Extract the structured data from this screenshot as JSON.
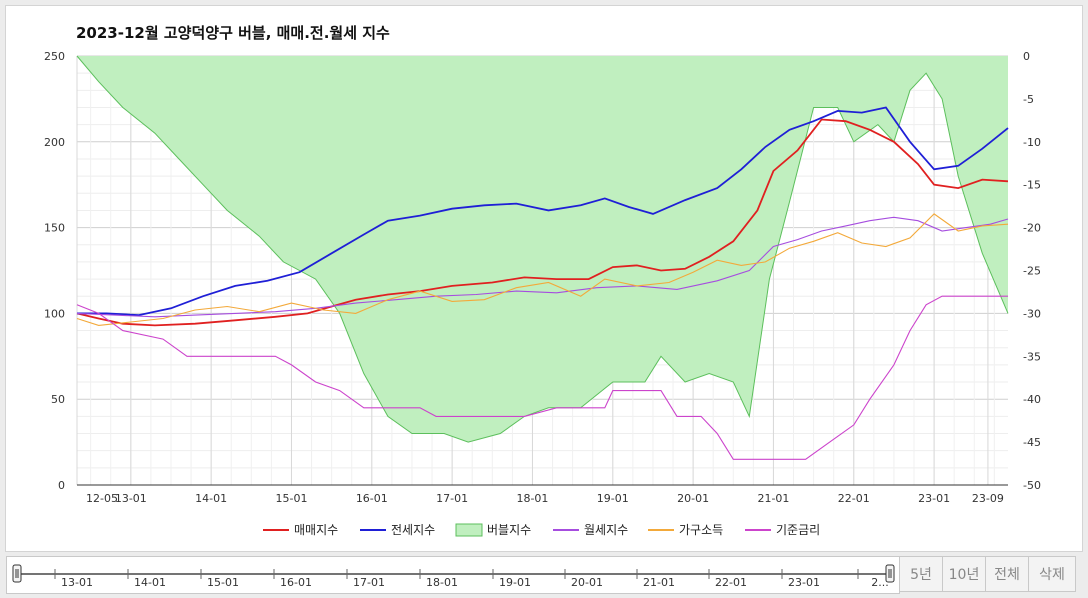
{
  "title": "2023-12월 고양덕양구 버블, 매매.전.월세 지수",
  "buttons": [
    "5년",
    "10년",
    "전체",
    "삭제"
  ],
  "navigator_ticks": [
    "13-01",
    "14-01",
    "15-01",
    "16-01",
    "17-01",
    "18-01",
    "19-01",
    "20-01",
    "21-01",
    "22-01",
    "23-01",
    "2..."
  ],
  "chart_data": {
    "type": "line",
    "title": "2023-12월 고양덕양구 버블, 매매.전.월세 지수",
    "x_ticks": [
      "12-05",
      "13-01",
      "14-01",
      "15-01",
      "16-01",
      "17-01",
      "18-01",
      "19-01",
      "20-01",
      "21-01",
      "22-01",
      "23-01",
      "23-09"
    ],
    "y_left": {
      "range": [
        0,
        250
      ],
      "ticks": [
        0,
        50,
        100,
        150,
        200,
        250
      ]
    },
    "y_right": {
      "range": [
        -50,
        0
      ],
      "ticks": [
        0,
        -5,
        -10,
        -15,
        -20,
        -25,
        -30,
        -35,
        -40,
        -45,
        -50
      ]
    },
    "grid": true,
    "legend_position": "bottom",
    "series": [
      {
        "name": "매매지수",
        "color": "#e02020",
        "axis": "left",
        "points": [
          [
            2012.33,
            100
          ],
          [
            2012.6,
            97
          ],
          [
            2012.9,
            94
          ],
          [
            2013.3,
            93
          ],
          [
            2013.8,
            94
          ],
          [
            2014.3,
            96
          ],
          [
            2014.8,
            98
          ],
          [
            2015.2,
            100
          ],
          [
            2015.5,
            104
          ],
          [
            2015.8,
            108
          ],
          [
            2016.2,
            111
          ],
          [
            2016.6,
            113
          ],
          [
            2017.0,
            116
          ],
          [
            2017.5,
            118
          ],
          [
            2017.9,
            121
          ],
          [
            2018.3,
            120
          ],
          [
            2018.7,
            120
          ],
          [
            2019.0,
            127
          ],
          [
            2019.3,
            128
          ],
          [
            2019.6,
            125
          ],
          [
            2019.9,
            126
          ],
          [
            2020.2,
            133
          ],
          [
            2020.5,
            142
          ],
          [
            2020.8,
            160
          ],
          [
            2021.0,
            183
          ],
          [
            2021.3,
            195
          ],
          [
            2021.6,
            213
          ],
          [
            2021.9,
            212
          ],
          [
            2022.2,
            207
          ],
          [
            2022.5,
            200
          ],
          [
            2022.8,
            187
          ],
          [
            2023.0,
            175
          ],
          [
            2023.3,
            173
          ],
          [
            2023.6,
            178
          ],
          [
            2023.92,
            177
          ]
        ]
      },
      {
        "name": "전세지수",
        "color": "#1f1fd6",
        "axis": "left",
        "points": [
          [
            2012.33,
            100
          ],
          [
            2012.7,
            100
          ],
          [
            2013.1,
            99
          ],
          [
            2013.5,
            103
          ],
          [
            2013.9,
            110
          ],
          [
            2014.3,
            116
          ],
          [
            2014.7,
            119
          ],
          [
            2015.1,
            124
          ],
          [
            2015.5,
            135
          ],
          [
            2015.9,
            146
          ],
          [
            2016.2,
            154
          ],
          [
            2016.6,
            157
          ],
          [
            2017.0,
            161
          ],
          [
            2017.4,
            163
          ],
          [
            2017.8,
            164
          ],
          [
            2018.2,
            160
          ],
          [
            2018.6,
            163
          ],
          [
            2018.9,
            167
          ],
          [
            2019.2,
            162
          ],
          [
            2019.5,
            158
          ],
          [
            2019.9,
            166
          ],
          [
            2020.3,
            173
          ],
          [
            2020.6,
            184
          ],
          [
            2020.9,
            197
          ],
          [
            2021.2,
            207
          ],
          [
            2021.5,
            212
          ],
          [
            2021.8,
            218
          ],
          [
            2022.1,
            217
          ],
          [
            2022.4,
            220
          ],
          [
            2022.7,
            200
          ],
          [
            2023.0,
            184
          ],
          [
            2023.3,
            186
          ],
          [
            2023.6,
            196
          ],
          [
            2023.92,
            208
          ]
        ]
      },
      {
        "name": "버블지수",
        "color": "#5cbf5c",
        "fill": "#c0efbf",
        "axis": "right",
        "points": [
          [
            2012.33,
            0
          ],
          [
            2012.6,
            -3
          ],
          [
            2012.9,
            -6
          ],
          [
            2013.3,
            -9
          ],
          [
            2013.6,
            -12
          ],
          [
            2013.9,
            -15
          ],
          [
            2014.2,
            -18
          ],
          [
            2014.6,
            -21
          ],
          [
            2014.9,
            -24
          ],
          [
            2015.3,
            -26
          ],
          [
            2015.6,
            -30
          ],
          [
            2015.9,
            -37
          ],
          [
            2016.2,
            -42
          ],
          [
            2016.5,
            -44
          ],
          [
            2016.9,
            -44
          ],
          [
            2017.2,
            -45
          ],
          [
            2017.6,
            -44
          ],
          [
            2017.9,
            -42
          ],
          [
            2018.2,
            -41
          ],
          [
            2018.6,
            -41
          ],
          [
            2019.0,
            -38
          ],
          [
            2019.4,
            -38
          ],
          [
            2019.6,
            -35
          ],
          [
            2019.9,
            -38
          ],
          [
            2020.2,
            -37
          ],
          [
            2020.5,
            -38
          ],
          [
            2020.7,
            -42
          ],
          [
            2020.95,
            -26
          ],
          [
            2021.2,
            -17
          ],
          [
            2021.5,
            -6
          ],
          [
            2021.8,
            -6
          ],
          [
            2022.0,
            -10
          ],
          [
            2022.3,
            -8
          ],
          [
            2022.5,
            -10
          ],
          [
            2022.7,
            -4
          ],
          [
            2022.9,
            -2
          ],
          [
            2023.1,
            -5
          ],
          [
            2023.3,
            -14
          ],
          [
            2023.6,
            -23
          ],
          [
            2023.92,
            -30
          ]
        ]
      },
      {
        "name": "월세지수",
        "color": "#a64ddf",
        "axis": "left",
        "points": [
          [
            2012.33,
            100
          ],
          [
            2012.8,
            99
          ],
          [
            2013.3,
            98
          ],
          [
            2013.8,
            99
          ],
          [
            2014.3,
            100
          ],
          [
            2014.8,
            101
          ],
          [
            2015.3,
            103
          ],
          [
            2015.8,
            106
          ],
          [
            2016.3,
            108
          ],
          [
            2016.8,
            110
          ],
          [
            2017.3,
            111
          ],
          [
            2017.8,
            113
          ],
          [
            2018.3,
            112
          ],
          [
            2018.8,
            115
          ],
          [
            2019.3,
            116
          ],
          [
            2019.8,
            114
          ],
          [
            2020.3,
            119
          ],
          [
            2020.7,
            125
          ],
          [
            2021.0,
            139
          ],
          [
            2021.3,
            143
          ],
          [
            2021.6,
            148
          ],
          [
            2021.9,
            151
          ],
          [
            2022.2,
            154
          ],
          [
            2022.5,
            156
          ],
          [
            2022.8,
            154
          ],
          [
            2023.1,
            148
          ],
          [
            2023.4,
            150
          ],
          [
            2023.7,
            152
          ],
          [
            2023.92,
            155
          ]
        ]
      },
      {
        "name": "가구소득",
        "color": "#f3a93a",
        "axis": "left",
        "points": [
          [
            2012.33,
            97
          ],
          [
            2012.6,
            93
          ],
          [
            2013.0,
            95
          ],
          [
            2013.4,
            97
          ],
          [
            2013.8,
            102
          ],
          [
            2014.2,
            104
          ],
          [
            2014.6,
            101
          ],
          [
            2015.0,
            106
          ],
          [
            2015.4,
            102
          ],
          [
            2015.8,
            100
          ],
          [
            2016.2,
            108
          ],
          [
            2016.6,
            113
          ],
          [
            2017.0,
            107
          ],
          [
            2017.4,
            108
          ],
          [
            2017.8,
            115
          ],
          [
            2018.2,
            118
          ],
          [
            2018.6,
            110
          ],
          [
            2018.9,
            120
          ],
          [
            2019.3,
            116
          ],
          [
            2019.7,
            118
          ],
          [
            2020.0,
            124
          ],
          [
            2020.3,
            131
          ],
          [
            2020.6,
            128
          ],
          [
            2020.9,
            130
          ],
          [
            2021.2,
            138
          ],
          [
            2021.5,
            142
          ],
          [
            2021.8,
            147
          ],
          [
            2022.1,
            141
          ],
          [
            2022.4,
            139
          ],
          [
            2022.7,
            144
          ],
          [
            2023.0,
            158
          ],
          [
            2023.3,
            148
          ],
          [
            2023.6,
            151
          ],
          [
            2023.92,
            152
          ]
        ]
      },
      {
        "name": "기준금리",
        "color": "#cc44cc",
        "axis": "right",
        "points": [
          [
            2012.33,
            -29
          ],
          [
            2012.6,
            -30
          ],
          [
            2012.9,
            -32
          ],
          [
            2013.4,
            -33
          ],
          [
            2013.7,
            -35
          ],
          [
            2014.8,
            -35
          ],
          [
            2015.0,
            -36
          ],
          [
            2015.3,
            -38
          ],
          [
            2015.6,
            -39
          ],
          [
            2015.9,
            -41
          ],
          [
            2016.6,
            -41
          ],
          [
            2016.8,
            -42
          ],
          [
            2017.9,
            -42
          ],
          [
            2018.3,
            -41
          ],
          [
            2018.9,
            -41
          ],
          [
            2019.0,
            -39
          ],
          [
            2019.6,
            -39
          ],
          [
            2019.8,
            -42
          ],
          [
            2020.1,
            -42
          ],
          [
            2020.3,
            -44
          ],
          [
            2020.5,
            -47
          ],
          [
            2021.4,
            -47
          ],
          [
            2021.7,
            -45
          ],
          [
            2022.0,
            -43
          ],
          [
            2022.2,
            -40
          ],
          [
            2022.5,
            -36
          ],
          [
            2022.7,
            -32
          ],
          [
            2022.9,
            -29
          ],
          [
            2023.1,
            -28
          ],
          [
            2023.92,
            -28
          ]
        ]
      }
    ]
  }
}
